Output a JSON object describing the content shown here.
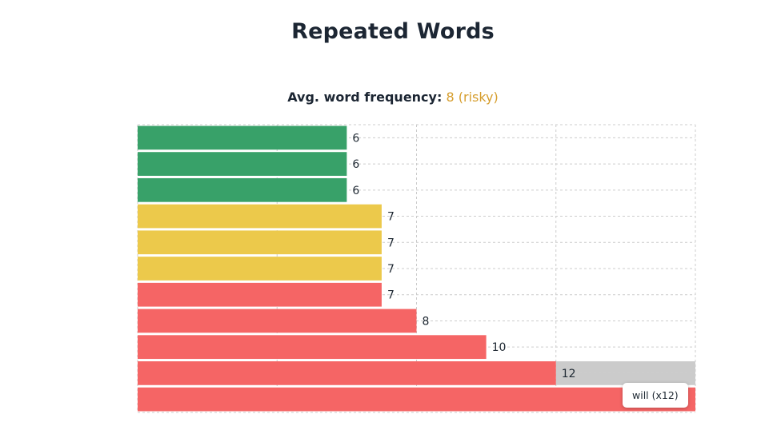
{
  "page": {
    "title": "Repeated Words",
    "avg_label": "Avg. word frequency:",
    "avg_value": "8",
    "avg_status": "(risky)"
  },
  "colors": {
    "green": "#38a169",
    "yellow": "#ecc94b",
    "red": "#f56565",
    "hover": "#cbcbcb",
    "grid": "#cccccc",
    "title": "#1c2633",
    "risky": "#d69e2e"
  },
  "tooltip": {
    "text": "will (x12)"
  },
  "chart_data": {
    "type": "bar",
    "orientation": "horizontal",
    "values": [
      6,
      6,
      6,
      7,
      7,
      7,
      7,
      8,
      10,
      12,
      16
    ],
    "bar_colors": [
      "green",
      "green",
      "green",
      "yellow",
      "yellow",
      "yellow",
      "red",
      "red",
      "red",
      "red",
      "red"
    ],
    "value_labels": [
      "6",
      "6",
      "6",
      "7",
      "7",
      "7",
      "7",
      "8",
      "10",
      "12",
      ""
    ],
    "hovered_index": 9,
    "xlim": [
      0,
      16
    ],
    "grid": true,
    "grid_style": "dashed",
    "legend": "none",
    "title": "",
    "xlabel": "",
    "ylabel": ""
  }
}
